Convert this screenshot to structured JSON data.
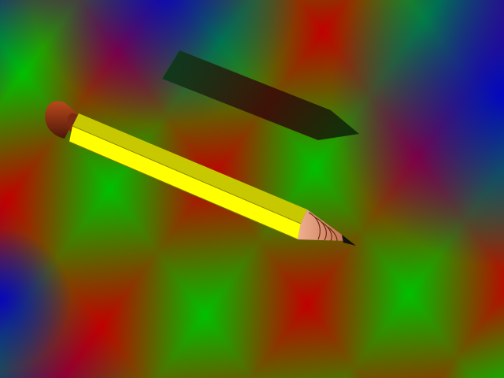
{
  "scene": {
    "background": {
      "type": "diagonal-banded-gradient",
      "colors": [
        "#00c000",
        "#c00000",
        "#0000c0"
      ]
    },
    "objects": [
      {
        "name": "pencil",
        "body_color": "#ffff00",
        "shade_color": "#c8c800",
        "eraser_color": "#8b2e12",
        "wood_color": "#e8a07a",
        "lead_color": "#111111"
      },
      {
        "name": "pencil-shadow",
        "color": "#0a3010"
      }
    ]
  }
}
